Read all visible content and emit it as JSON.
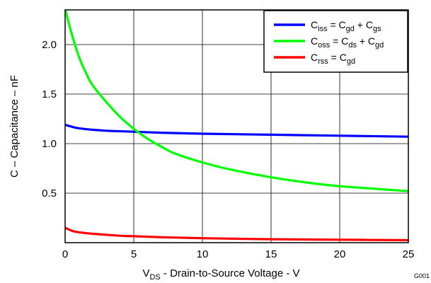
{
  "chart_data": {
    "type": "line",
    "ylabel": "C – Capacitance – nF",
    "xlabel": {
      "main": "V",
      "sub": "DS",
      "rest": " - Drain-to-Source Voltage - V"
    },
    "figure_code": "G001",
    "xlim": [
      0,
      25
    ],
    "ylim": [
      0,
      2.35
    ],
    "x_ticks": [
      "0",
      "5",
      "10",
      "15",
      "20",
      "25"
    ],
    "y_ticks": [
      {
        "value": 0.5,
        "label": "0.5"
      },
      {
        "value": 1.0,
        "label": "1.0"
      },
      {
        "value": 1.5,
        "label": "1.5"
      },
      {
        "value": 2.0,
        "label": "2.0"
      }
    ],
    "grid": true,
    "legend_position": "top-right",
    "series": [
      {
        "legend": [
          {
            "t": "C"
          },
          {
            "t": "iss",
            "sub": true
          },
          {
            "t": " = C"
          },
          {
            "t": "gd",
            "sub": true
          },
          {
            "t": " + C"
          },
          {
            "t": "gs",
            "sub": true
          }
        ],
        "color": "#0000ff",
        "points": [
          [
            0,
            1.19
          ],
          [
            0.5,
            1.17
          ],
          [
            1,
            1.155
          ],
          [
            2,
            1.14
          ],
          [
            3,
            1.13
          ],
          [
            4,
            1.125
          ],
          [
            5,
            1.12
          ],
          [
            7,
            1.11
          ],
          [
            10,
            1.1
          ],
          [
            15,
            1.09
          ],
          [
            20,
            1.08
          ],
          [
            25,
            1.07
          ]
        ]
      },
      {
        "legend": [
          {
            "t": "C"
          },
          {
            "t": "oss",
            "sub": true
          },
          {
            "t": " = C"
          },
          {
            "t": "ds",
            "sub": true
          },
          {
            "t": " + C"
          },
          {
            "t": "gd",
            "sub": true
          }
        ],
        "color": "#00ff00",
        "points": [
          [
            0,
            2.36
          ],
          [
            0.5,
            2.1
          ],
          [
            1,
            1.88
          ],
          [
            1.5,
            1.72
          ],
          [
            2,
            1.59
          ],
          [
            3,
            1.42
          ],
          [
            4,
            1.27
          ],
          [
            5,
            1.15
          ],
          [
            6,
            1.05
          ],
          [
            7,
            0.97
          ],
          [
            8,
            0.9
          ],
          [
            10,
            0.81
          ],
          [
            12,
            0.74
          ],
          [
            15,
            0.66
          ],
          [
            18,
            0.6
          ],
          [
            20,
            0.57
          ],
          [
            22,
            0.55
          ],
          [
            25,
            0.52
          ]
        ]
      },
      {
        "legend": [
          {
            "t": "C"
          },
          {
            "t": "rss",
            "sub": true
          },
          {
            "t": " =  C"
          },
          {
            "t": "gd",
            "sub": true
          }
        ],
        "color": "#ff0000",
        "points": [
          [
            0,
            0.15
          ],
          [
            0.5,
            0.12
          ],
          [
            1,
            0.105
          ],
          [
            2,
            0.09
          ],
          [
            3,
            0.08
          ],
          [
            4,
            0.07
          ],
          [
            5,
            0.065
          ],
          [
            7,
            0.055
          ],
          [
            10,
            0.045
          ],
          [
            15,
            0.035
          ],
          [
            20,
            0.03
          ],
          [
            25,
            0.025
          ]
        ]
      }
    ]
  }
}
